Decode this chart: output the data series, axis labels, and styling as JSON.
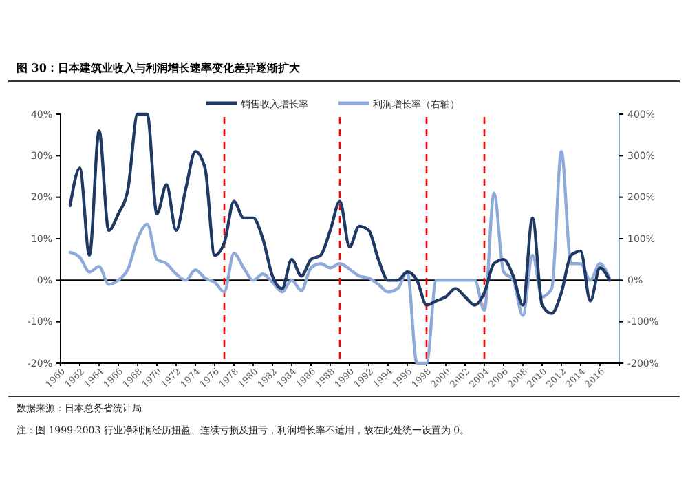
{
  "chart_data": {
    "type": "line",
    "title": "图 30：日本建筑业收入与利润增长速率变化差异逐渐扩大",
    "x": [
      1961,
      1962,
      1963,
      1964,
      1965,
      1966,
      1967,
      1968,
      1969,
      1970,
      1971,
      1972,
      1973,
      1974,
      1975,
      1976,
      1977,
      1978,
      1979,
      1980,
      1981,
      1982,
      1983,
      1984,
      1985,
      1986,
      1987,
      1988,
      1989,
      1990,
      1991,
      1992,
      1993,
      1994,
      1995,
      1996,
      1997,
      1998,
      1999,
      2000,
      2001,
      2002,
      2003,
      2004,
      2005,
      2006,
      2007,
      2008,
      2009,
      2010,
      2011,
      2012,
      2013,
      2014,
      2015,
      2016,
      2017
    ],
    "series": [
      {
        "name": "销售收入增长率",
        "color": "#1f3864",
        "values": [
          18,
          27,
          6,
          36,
          12,
          16,
          22,
          40,
          40,
          16,
          23,
          12,
          22,
          31,
          27,
          6,
          9,
          19,
          15,
          15,
          10,
          1,
          -2,
          5,
          1,
          5,
          6,
          12,
          19,
          8,
          13,
          12,
          5,
          0,
          0,
          2,
          0,
          -6,
          -5,
          -4,
          -2,
          -4,
          -6,
          -3,
          4,
          5,
          1,
          -6,
          15,
          -6,
          -8,
          -3,
          6,
          7,
          -5,
          3,
          0
        ]
      },
      {
        "name": "利润增长率（右轴）",
        "color": "#8eaadb",
        "axis": "y2",
        "values": [
          67,
          55,
          20,
          33,
          -10,
          0,
          27,
          100,
          135,
          50,
          40,
          15,
          0,
          25,
          5,
          -5,
          -28,
          65,
          30,
          0,
          15,
          -5,
          -28,
          0,
          -25,
          30,
          40,
          30,
          40,
          27,
          10,
          5,
          -10,
          -28,
          -20,
          20,
          -200,
          -200,
          0,
          0,
          0,
          0,
          0,
          -73,
          210,
          20,
          0,
          -85,
          60,
          -40,
          -20,
          310,
          40,
          40,
          0,
          40,
          5
        ]
      }
    ],
    "xlim": [
      1960,
      2018
    ],
    "xticks": [
      1960,
      1962,
      1964,
      1966,
      1968,
      1970,
      1972,
      1974,
      1976,
      1978,
      1980,
      1982,
      1984,
      1986,
      1988,
      1990,
      1992,
      1994,
      1996,
      1998,
      2000,
      2002,
      2004,
      2006,
      2008,
      2010,
      2012,
      2014,
      2016
    ],
    "ylim": [
      -20,
      40
    ],
    "yticks": [
      {
        "value": -20,
        "label": "-20%"
      },
      {
        "value": -10,
        "label": "-10%"
      },
      {
        "value": 0,
        "label": "0%"
      },
      {
        "value": 10,
        "label": "10%"
      },
      {
        "value": 20,
        "label": "20%"
      },
      {
        "value": 30,
        "label": "30%"
      },
      {
        "value": 40,
        "label": "40%"
      }
    ],
    "y2lim": [
      -200,
      400
    ],
    "y2ticks": [
      {
        "value": -200,
        "label": "-200%"
      },
      {
        "value": -100,
        "label": "-100%"
      },
      {
        "value": 0,
        "label": "0%"
      },
      {
        "value": 100,
        "label": "100%"
      },
      {
        "value": 200,
        "label": "200%"
      },
      {
        "value": 300,
        "label": "300%"
      },
      {
        "value": 400,
        "label": "400%"
      }
    ],
    "ref_lines": [
      {
        "axis": "x",
        "value": 1977,
        "color": "#ff0000",
        "line_style": "dashed"
      },
      {
        "axis": "x",
        "value": 1989,
        "color": "#ff0000",
        "line_style": "dashed"
      },
      {
        "axis": "x",
        "value": 1998,
        "color": "#ff0000",
        "line_style": "dashed"
      },
      {
        "axis": "x",
        "value": 2004,
        "color": "#ff0000",
        "line_style": "dashed"
      }
    ],
    "legend": "top",
    "grid": false,
    "line_style": "solid",
    "annotations": [
      "数据来源：日本总务省统计局",
      "注：图 1999-2003 行业净利润经历扭盈、连续亏损及扭亏，利润增长率不适用，故在此处统一设置为 0。"
    ]
  }
}
